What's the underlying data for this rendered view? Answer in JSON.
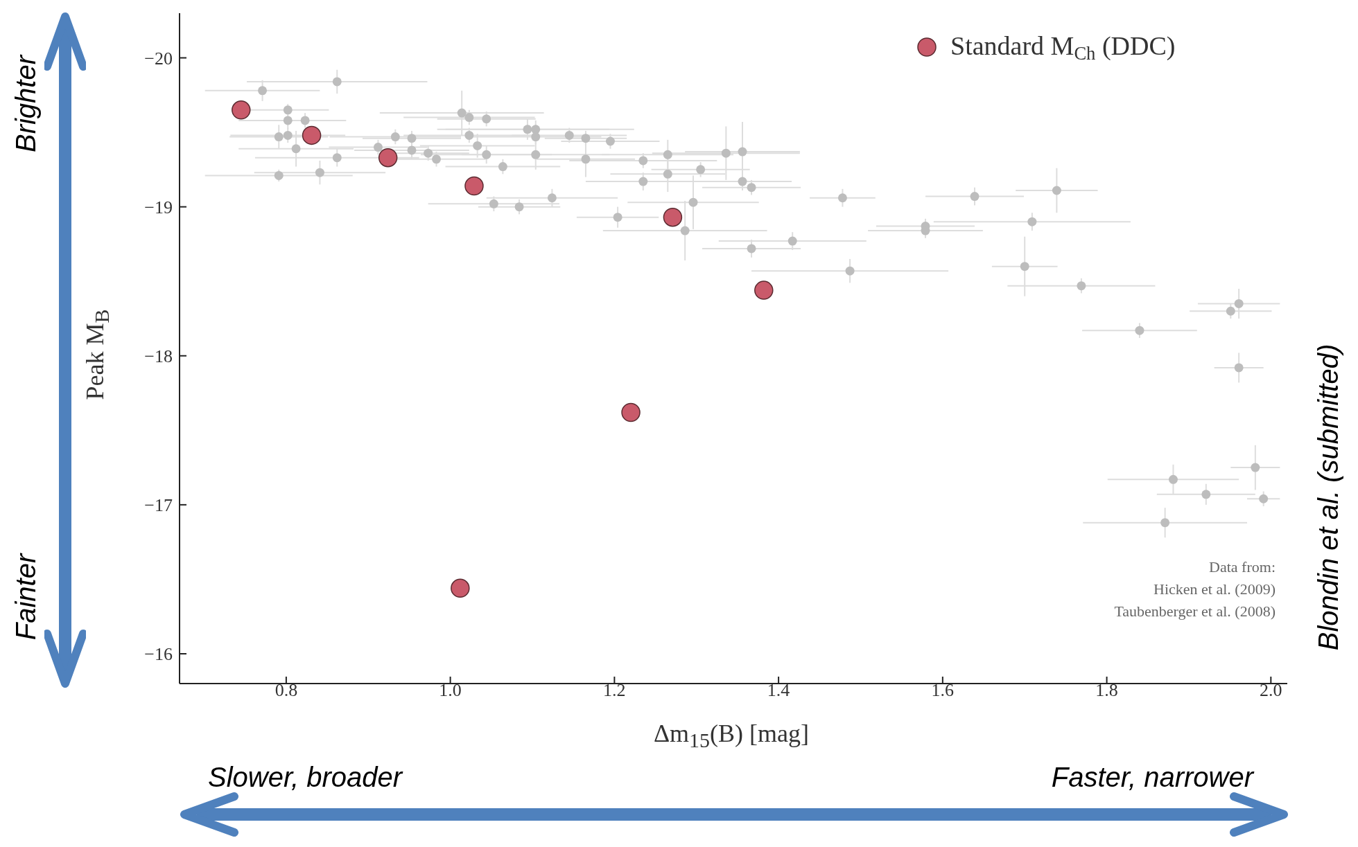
{
  "chart_data": {
    "type": "scatter",
    "xlabel": "Δm$_{15}$(B) [mag]",
    "ylabel": "Peak M$_{B}$",
    "xlim": [
      0.67,
      2.02
    ],
    "ylim": [
      -15.8,
      -20.3
    ],
    "xticks": [
      0.8,
      {
        "value": 1,
        "label": "1.0"
      },
      1.2,
      1.4,
      1.6,
      1.8,
      {
        "value": 2,
        "label": "2.0"
      }
    ],
    "yticks": [
      {
        "value": -20,
        "label": "−20"
      },
      {
        "value": -19,
        "label": "−19"
      },
      {
        "value": -18,
        "label": "−18"
      },
      {
        "value": -17,
        "label": "−17"
      },
      {
        "value": -16,
        "label": "−16"
      }
    ],
    "grid": false,
    "legend": "top right",
    "marker": "circle",
    "series": [
      {
        "color": "#bdbdbd",
        "x": [
          0.771,
          0.862,
          0.802,
          0.802,
          0.791,
          0.802,
          0.812,
          0.823,
          0.862,
          0.841,
          0.791,
          0.912,
          0.933,
          0.953,
          0.953,
          0.973,
          0.983,
          1.014,
          1.023,
          1.044,
          1.023,
          1.033,
          1.044,
          1.064,
          1.053,
          1.084,
          1.094,
          1.104,
          1.104,
          1.104,
          1.124,
          1.145,
          1.165,
          1.165,
          1.195,
          1.204,
          1.235,
          1.235,
          1.265,
          1.265,
          1.286,
          1.296,
          1.305,
          1.336,
          1.356,
          1.356,
          1.367,
          1.367,
          1.417,
          1.478,
          1.487,
          1.579,
          1.579,
          1.639,
          1.709,
          1.7,
          1.739,
          1.769,
          1.84,
          1.951,
          1.961,
          1.961,
          1.881,
          1.871,
          1.921,
          1.981,
          1.991
        ],
        "values": [
          -19.78,
          -19.84,
          -19.65,
          -19.58,
          -19.47,
          -19.48,
          -19.39,
          -19.58,
          -19.33,
          -19.23,
          -19.21,
          -19.4,
          -19.47,
          -19.46,
          -19.38,
          -19.36,
          -19.32,
          -19.63,
          -19.6,
          -19.59,
          -19.48,
          -19.41,
          -19.35,
          -19.27,
          -19.02,
          -19.0,
          -19.52,
          -19.52,
          -19.47,
          -19.35,
          -19.06,
          -19.48,
          -19.46,
          -19.32,
          -19.44,
          -18.93,
          -19.31,
          -19.17,
          -19.35,
          -19.22,
          -18.84,
          -19.03,
          -19.25,
          -19.36,
          -19.37,
          -19.17,
          -19.13,
          -18.72,
          -18.77,
          -19.06,
          -18.57,
          -18.87,
          -18.84,
          -19.07,
          -18.9,
          -18.6,
          -19.11,
          -18.47,
          -18.17,
          -18.3,
          -18.35,
          -17.92,
          -17.17,
          -16.88,
          -17.07,
          -17.25,
          -17.04
        ],
        "errors": [
          0.07,
          0.08,
          0.04,
          0.06,
          0.08,
          0.05,
          0.12,
          0.05,
          0.06,
          0.08,
          0.04,
          0.05,
          0.05,
          0.05,
          0.06,
          0.05,
          0.05,
          0.15,
          0.05,
          0.05,
          0.05,
          0.08,
          0.06,
          0.05,
          0.05,
          0.05,
          0.07,
          0.06,
          0.05,
          0.1,
          0.06,
          0.05,
          0.05,
          0.12,
          0.05,
          0.07,
          0.05,
          0.06,
          0.1,
          0.12,
          0.2,
          0.18,
          0.05,
          0.18,
          0.2,
          0.06,
          0.05,
          0.06,
          0.06,
          0.06,
          0.08,
          0.05,
          0.05,
          0.06,
          0.06,
          0.2,
          0.15,
          0.05,
          0.05,
          0.05,
          0.1,
          0.1,
          0.1,
          0.1,
          0.07,
          0.15,
          0.05
        ],
        "xerrors": [
          0.07,
          0.11,
          0.05,
          0.06,
          0.06,
          0.07,
          0.07,
          0.05,
          0.1,
          0.08,
          0.09,
          0.06,
          0.08,
          0.06,
          0.07,
          0.05,
          0.06,
          0.1,
          0.08,
          0.06,
          0.08,
          0.07,
          0.08,
          0.07,
          0.08,
          0.05,
          0.1,
          0.12,
          0.08,
          0.09,
          0.08,
          0.07,
          0.05,
          0.06,
          0.06,
          0.05,
          0.09,
          0.07,
          0.08,
          0.07,
          0.1,
          0.08,
          0.06,
          0.09,
          0.07,
          0.06,
          0.06,
          0.06,
          0.09,
          0.04,
          0.12,
          0.06,
          0.07,
          0.06,
          0.12,
          0.04,
          0.05,
          0.09,
          0.07,
          0.05,
          0.05,
          0.03,
          0.08,
          0.1,
          0.06,
          0.03,
          0.02
        ]
      },
      {
        "name": "Standard M$_{Ch}$ (DDC)",
        "color": "#c95a6a",
        "x": [
          0.745,
          0.831,
          0.924,
          1.029,
          1.271,
          1.382,
          1.22,
          1.012
        ],
        "values": [
          -19.65,
          -19.48,
          -19.33,
          -19.14,
          -18.93,
          -18.44,
          -17.62,
          -16.44
        ]
      }
    ],
    "annotations": [
      "Data from:\nHicken et al. (2009)\nTaubenberger et al. (2008)",
      "Brighter",
      "Fainter",
      "Slower, broader",
      "Faster, narrower",
      "Blondin et al. (submitted)"
    ]
  }
}
